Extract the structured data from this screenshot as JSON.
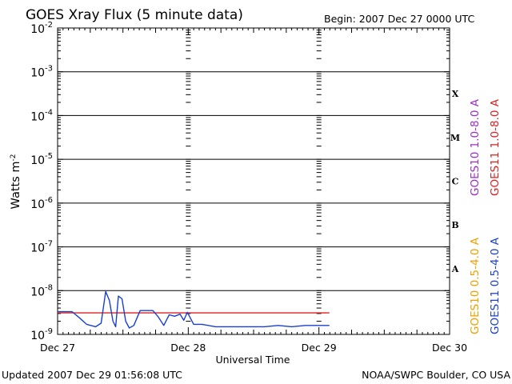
{
  "header": {
    "title": "GOES Xray Flux (5 minute data)",
    "begin": "Begin:  2007 Dec 27 0000 UTC"
  },
  "footer": {
    "updated": "Updated 2007 Dec 29 01:56:08 UTC",
    "credit": "NOAA/SWPC Boulder, CO USA"
  },
  "legend": {
    "goes10_long": "GOES10 1.0-8.0 A",
    "goes11_long": "GOES11 1.0-8.0 A",
    "goes10_short": "GOES10 0.5-4.0 A",
    "goes11_short": "GOES11 0.5-4.0 A"
  },
  "colors": {
    "goes10_long": "#9a2fc4",
    "goes11_long": "#dd2020",
    "goes10_short": "#f0a000",
    "goes11_short": "#1a3fd0"
  },
  "flare_classes": [
    "X",
    "M",
    "C",
    "B",
    "A"
  ],
  "chart_data": {
    "type": "line",
    "title": "GOES Xray Flux (5 minute data)",
    "xlabel": "Universal Time",
    "ylabel": "Watts m-2",
    "yscale": "log",
    "ylim": [
      1e-09,
      0.01
    ],
    "xlim": [
      "2007-12-27T00:00",
      "2007-12-30T00:00"
    ],
    "x_tick_labels": [
      "Dec 27",
      "Dec 28",
      "Dec 29",
      "Dec 30"
    ],
    "y_tick_labels": [
      {
        "base": "10",
        "exp": "-2"
      },
      {
        "base": "10",
        "exp": "-3"
      },
      {
        "base": "10",
        "exp": "-4"
      },
      {
        "base": "10",
        "exp": "-5"
      },
      {
        "base": "10",
        "exp": "-6"
      },
      {
        "base": "10",
        "exp": "-7"
      },
      {
        "base": "10",
        "exp": "-8"
      },
      {
        "base": "10",
        "exp": "-9"
      }
    ],
    "series": [
      {
        "name": "GOES11 1.0-8.0 A",
        "color": "#dd2020",
        "points": [
          [
            "2007-12-27T00:00",
            3.1e-09
          ],
          [
            "2007-12-29T01:55",
            3.1e-09
          ]
        ]
      },
      {
        "name": "GOES11 0.5-4.0 A",
        "color": "#1a3fd0",
        "points": [
          [
            "2007-12-27T00:00",
            3.3e-09
          ],
          [
            "2007-12-27T02:40",
            3.3e-09
          ],
          [
            "2007-12-27T04:00",
            2.4e-09
          ],
          [
            "2007-12-27T05:20",
            1.7e-09
          ],
          [
            "2007-12-27T07:00",
            1.5e-09
          ],
          [
            "2007-12-27T08:00",
            1.8e-09
          ],
          [
            "2007-12-27T08:50",
            9.5e-09
          ],
          [
            "2007-12-27T09:30",
            6e-09
          ],
          [
            "2007-12-27T10:10",
            2e-09
          ],
          [
            "2007-12-27T10:40",
            1.5e-09
          ],
          [
            "2007-12-27T11:10",
            7.5e-09
          ],
          [
            "2007-12-27T11:50",
            6.5e-09
          ],
          [
            "2007-12-27T12:30",
            2e-09
          ],
          [
            "2007-12-27T13:10",
            1.4e-09
          ],
          [
            "2007-12-27T14:00",
            1.6e-09
          ],
          [
            "2007-12-27T15:10",
            3.5e-09
          ],
          [
            "2007-12-27T17:30",
            3.5e-09
          ],
          [
            "2007-12-27T18:30",
            2.5e-09
          ],
          [
            "2007-12-27T19:30",
            1.6e-09
          ],
          [
            "2007-12-27T20:30",
            2.8e-09
          ],
          [
            "2007-12-27T21:30",
            2.6e-09
          ],
          [
            "2007-12-27T22:30",
            2.9e-09
          ],
          [
            "2007-12-27T23:10",
            2.1e-09
          ],
          [
            "2007-12-27T23:50",
            3.2e-09
          ],
          [
            "2007-12-28T01:00",
            1.7e-09
          ],
          [
            "2007-12-28T02:30",
            1.7e-09
          ],
          [
            "2007-12-28T05:00",
            1.5e-09
          ],
          [
            "2007-12-28T10:00",
            1.5e-09
          ],
          [
            "2007-12-28T14:00",
            1.5e-09
          ],
          [
            "2007-12-28T16:30",
            1.6e-09
          ],
          [
            "2007-12-28T19:00",
            1.5e-09
          ],
          [
            "2007-12-28T21:30",
            1.6e-09
          ],
          [
            "2007-12-29T01:55",
            1.6e-09
          ]
        ]
      }
    ],
    "grid": "horizontal decade lines; dotted day separators",
    "legend": "right side, vertical text"
  }
}
